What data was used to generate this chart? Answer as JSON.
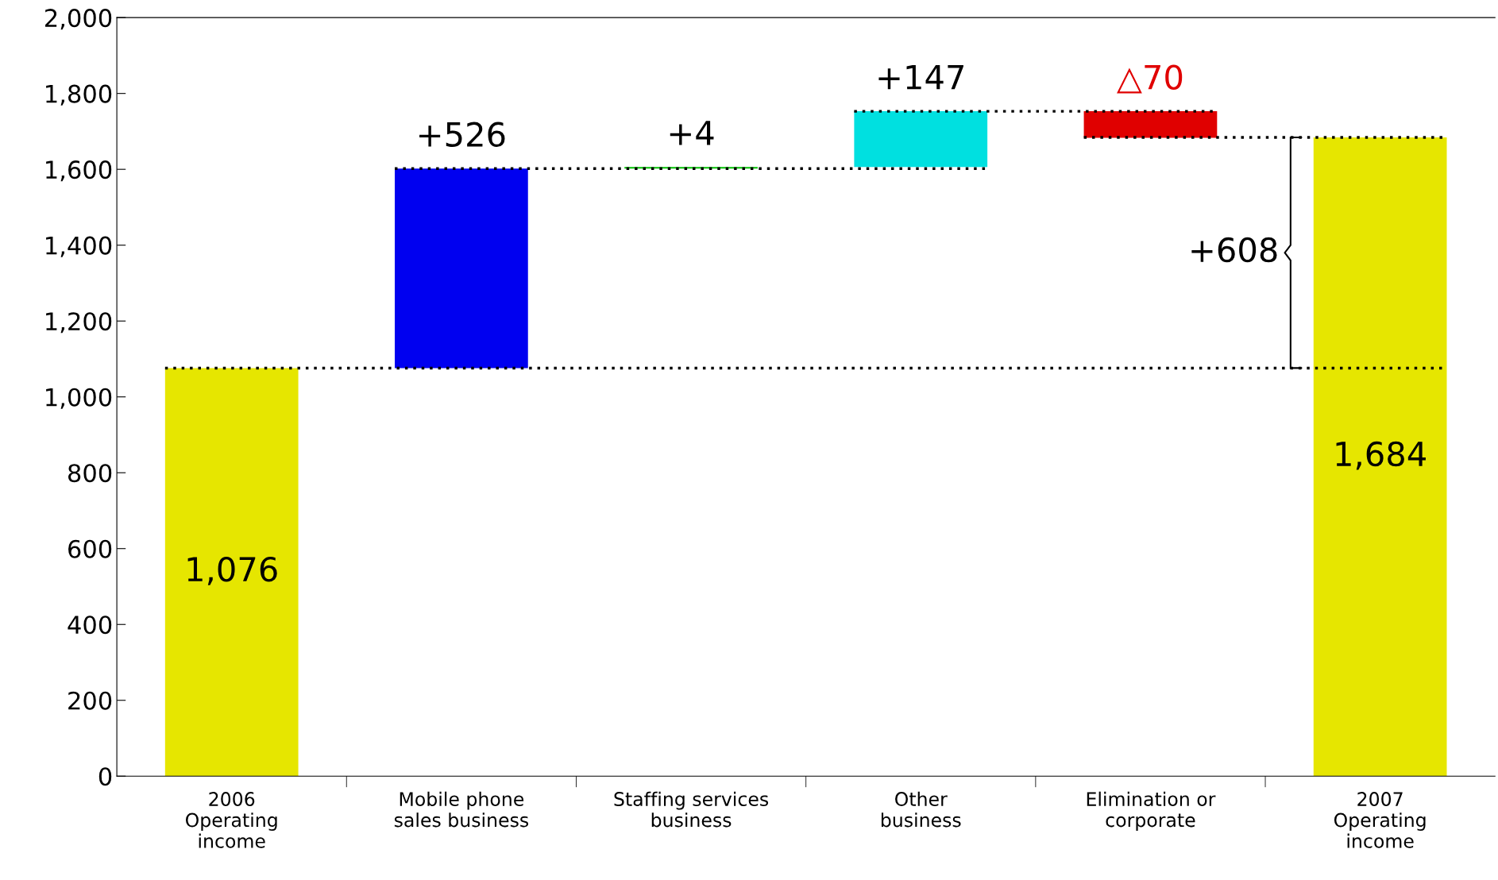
{
  "chart_data": {
    "type": "bar",
    "categories": [
      "2006\nOperating\nincome",
      "Mobile phone\nsales business",
      "Staffing services\nbusiness",
      "Other\nbusiness",
      "Elimination or\ncorporate",
      "2007\nOperating\nincome"
    ],
    "values": [
      1076,
      526,
      4,
      147,
      -70,
      1684
    ],
    "base": [
      0,
      1076,
      1602,
      1606,
      1753,
      0
    ],
    "colors": [
      "#e6e600",
      "#0000f0",
      "#00c000",
      "#00e0e0",
      "#e00000",
      "#e6e600"
    ],
    "value_labels": [
      "1,076",
      "+526",
      "+4",
      "+147",
      "△70",
      "1,684"
    ],
    "ylim": [
      0,
      2000
    ],
    "yticks": [
      {
        "value": 0,
        "label": "0"
      },
      {
        "value": 200,
        "label": "200"
      },
      {
        "value": 400,
        "label": "400"
      },
      {
        "value": 600,
        "label": "600"
      },
      {
        "value": 800,
        "label": "800"
      },
      {
        "value": 1000,
        "label": "1,000"
      },
      {
        "value": 1200,
        "label": "1,200"
      },
      {
        "value": 1400,
        "label": "1,400"
      },
      {
        "value": 1600,
        "label": "1,600"
      },
      {
        "value": 1800,
        "label": "1,800"
      },
      {
        "value": 2000,
        "label": "2,000"
      }
    ],
    "ref_lines": [
      {
        "axis": "y",
        "value": 1076,
        "color": "#000000",
        "line_style": "dotted"
      },
      {
        "axis": "y",
        "value": 1602,
        "color": "#000000",
        "line_style": "dotted"
      },
      {
        "axis": "y",
        "value": 1753,
        "color": "#000000",
        "line_style": "dotted"
      },
      {
        "axis": "y",
        "value": 1684,
        "color": "#000000",
        "line_style": "dotted"
      }
    ],
    "annotations": [
      "+608"
    ],
    "grid": false
  }
}
